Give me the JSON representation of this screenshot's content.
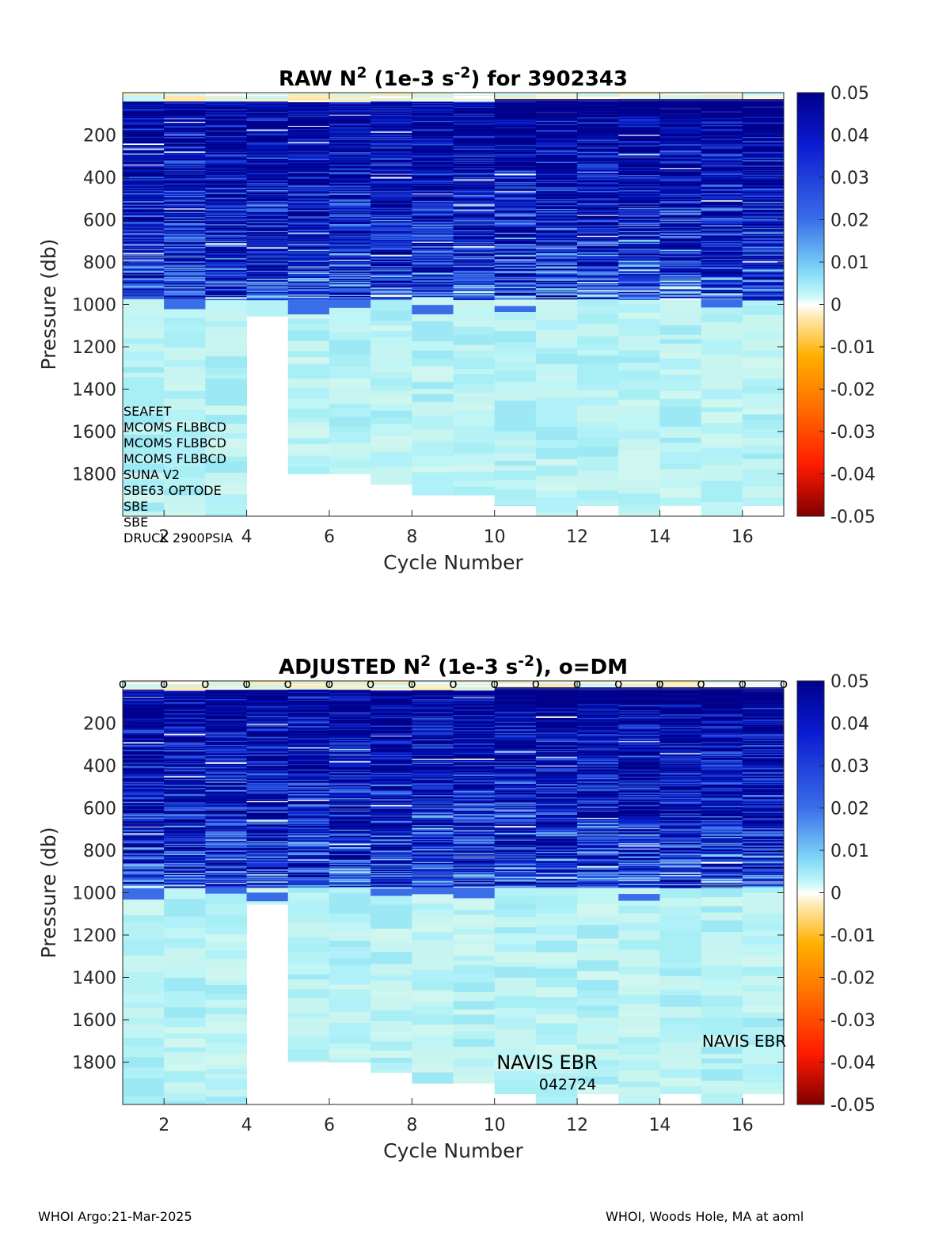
{
  "chart_data": [
    {
      "type": "heatmap",
      "title_main": "RAW N",
      "title_sup": "2",
      "title_mid": " (1e-3 s",
      "title_sup2": "-2",
      "title_end": ") for 3902343",
      "xlabel": "Cycle Number",
      "ylabel": "Pressure (db)",
      "xlim": [
        1,
        17
      ],
      "ylim": [
        0,
        2000
      ],
      "x_ticks": [
        "2",
        "4",
        "6",
        "8",
        "10",
        "12",
        "14",
        "16"
      ],
      "y_ticks": [
        "200",
        "400",
        "600",
        "800",
        "1000",
        "1200",
        "1400",
        "1600",
        "1800"
      ],
      "colorbar_ticks": [
        "0.05",
        "0.04",
        "0.03",
        "0.02",
        "0.01",
        "0",
        "-0.01",
        "-0.02",
        "-0.03",
        "-0.04",
        "-0.05"
      ],
      "clim": [
        -0.05,
        0.05
      ],
      "cycles": [
        1,
        2,
        3,
        4,
        5,
        6,
        7,
        8,
        9,
        10,
        11,
        12,
        13,
        14,
        15,
        16
      ],
      "max_pressure": [
        2000,
        2000,
        2000,
        1055,
        1800,
        1800,
        1850,
        1900,
        1900,
        1950,
        2000,
        1950,
        2000,
        1950,
        2000,
        1950
      ],
      "sensors": [
        "SEAFET",
        "MCOMS FLBBCD",
        "MCOMS FLBBCD",
        "MCOMS FLBBCD",
        "SUNA V2",
        "SBE63 OPTODE",
        "SBE",
        "SBE",
        "DRUCK 2900PSIA"
      ]
    },
    {
      "type": "heatmap",
      "title_main": "ADJUSTED N",
      "title_sup": "2",
      "title_mid": " (1e-3 s",
      "title_sup2": "-2",
      "title_end": "), o=DM",
      "xlabel": "Cycle Number",
      "ylabel": "Pressure (db)",
      "xlim": [
        1,
        17
      ],
      "ylim": [
        0,
        2000
      ],
      "x_ticks": [
        "2",
        "4",
        "6",
        "8",
        "10",
        "12",
        "14",
        "16"
      ],
      "y_ticks": [
        "200",
        "400",
        "600",
        "800",
        "1000",
        "1200",
        "1400",
        "1600",
        "1800"
      ],
      "colorbar_ticks": [
        "0.05",
        "0.04",
        "0.03",
        "0.02",
        "0.01",
        "0",
        "-0.01",
        "-0.02",
        "-0.03",
        "-0.04",
        "-0.05"
      ],
      "clim": [
        -0.05,
        0.05
      ],
      "cycles": [
        1,
        2,
        3,
        4,
        5,
        6,
        7,
        8,
        9,
        10,
        11,
        12,
        13,
        14,
        15,
        16
      ],
      "max_pressure": [
        2000,
        2000,
        2000,
        1055,
        1800,
        1800,
        1850,
        1900,
        1900,
        1950,
        2000,
        1950,
        2000,
        1950,
        2000,
        1950
      ],
      "dm_marker": "o",
      "dm_cycles": [
        1,
        2,
        3,
        4,
        5,
        6,
        7,
        8,
        9,
        10,
        11,
        12,
        13,
        14,
        15,
        16,
        17
      ],
      "annotations": {
        "navis1": "NAVIS EBR",
        "navis1_id": "042724",
        "navis2": "NAVIS EBR"
      }
    }
  ],
  "footer": {
    "left": "WHOI Argo:21-Mar-2025",
    "right": "WHOI, Woods Hole, MA at aoml"
  },
  "colors": {
    "deep_blue": "#00008b",
    "mid_blue": "#2255e0",
    "light_cyan": "#bff5f5",
    "neutral": "#ffffff",
    "orange": "#ffb000",
    "dark_red": "#800000"
  }
}
